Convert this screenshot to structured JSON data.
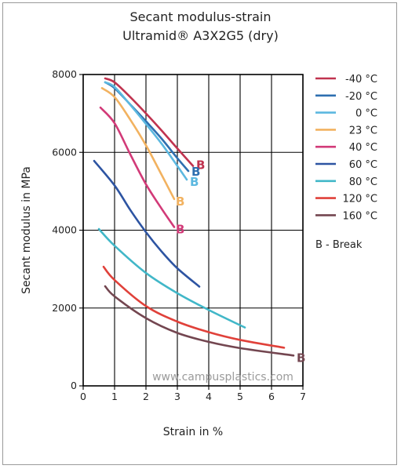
{
  "chart_data": {
    "type": "line",
    "title": "Secant modulus-strain",
    "subtitle": "Ultramid® A3X2G5 (dry)",
    "xlabel": "Strain in %",
    "ylabel": "Secant modulus in MPa",
    "xlim": [
      0,
      7
    ],
    "ylim": [
      0,
      8000
    ],
    "x_ticks": [
      "0",
      "1",
      "2",
      "3",
      "4",
      "5",
      "6",
      "7"
    ],
    "y_ticks": [
      "0",
      "2000",
      "4000",
      "6000",
      "8000"
    ],
    "grid": true,
    "legend_position": "right",
    "break_note": "B - Break",
    "break_marker": "B",
    "watermark": "www.campusplastics.com",
    "series": [
      {
        "name": "-40 °C",
        "color": "#c0334f",
        "break": true,
        "x": [
          0.7,
          1.0,
          1.5,
          2.0,
          2.5,
          3.0,
          3.5
        ],
        "y": [
          7900,
          7800,
          7420,
          7000,
          6560,
          6100,
          5650
        ]
      },
      {
        "name": "-20 °C",
        "color": "#2e6fb0",
        "break": true,
        "x": [
          0.7,
          1.0,
          1.5,
          2.0,
          2.5,
          3.0,
          3.35
        ],
        "y": [
          7800,
          7650,
          7230,
          6800,
          6350,
          5850,
          5520
        ]
      },
      {
        "name": "0 °C",
        "color": "#5cb8e0",
        "break": true,
        "x": [
          0.7,
          1.0,
          1.5,
          2.0,
          2.5,
          3.0,
          3.3
        ],
        "y": [
          7800,
          7680,
          7220,
          6730,
          6220,
          5650,
          5300
        ]
      },
      {
        "name": "23 °C",
        "color": "#f2b260",
        "break": true,
        "x": [
          0.6,
          1.0,
          1.5,
          2.0,
          2.5,
          2.9
        ],
        "y": [
          7650,
          7420,
          6840,
          6180,
          5420,
          4800
        ]
      },
      {
        "name": "40 °C",
        "color": "#d23a78",
        "break": true,
        "x": [
          0.55,
          1.0,
          1.5,
          2.0,
          2.5,
          2.9
        ],
        "y": [
          7150,
          6750,
          5950,
          5180,
          4550,
          4080
        ]
      },
      {
        "name": "60 °C",
        "color": "#2d54a2",
        "break": false,
        "x": [
          0.35,
          1.0,
          1.5,
          2.0,
          2.5,
          3.0,
          3.7
        ],
        "y": [
          5780,
          5150,
          4520,
          3950,
          3450,
          3020,
          2550
        ]
      },
      {
        "name": "80 °C",
        "color": "#41b7c8",
        "break": false,
        "x": [
          0.5,
          1.0,
          2.0,
          3.0,
          4.0,
          5.15
        ],
        "y": [
          4030,
          3600,
          2900,
          2380,
          1950,
          1500
        ]
      },
      {
        "name": "120 °C",
        "color": "#e0413a",
        "break": false,
        "x": [
          0.65,
          1.0,
          2.0,
          3.0,
          4.0,
          5.0,
          6.4
        ],
        "y": [
          3060,
          2720,
          2050,
          1650,
          1380,
          1180,
          980
        ]
      },
      {
        "name": "160 °C",
        "color": "#734650",
        "break": true,
        "x": [
          0.7,
          1.0,
          2.0,
          3.0,
          4.0,
          5.0,
          6.7
        ],
        "y": [
          2560,
          2300,
          1740,
          1360,
          1130,
          970,
          780
        ]
      }
    ]
  }
}
